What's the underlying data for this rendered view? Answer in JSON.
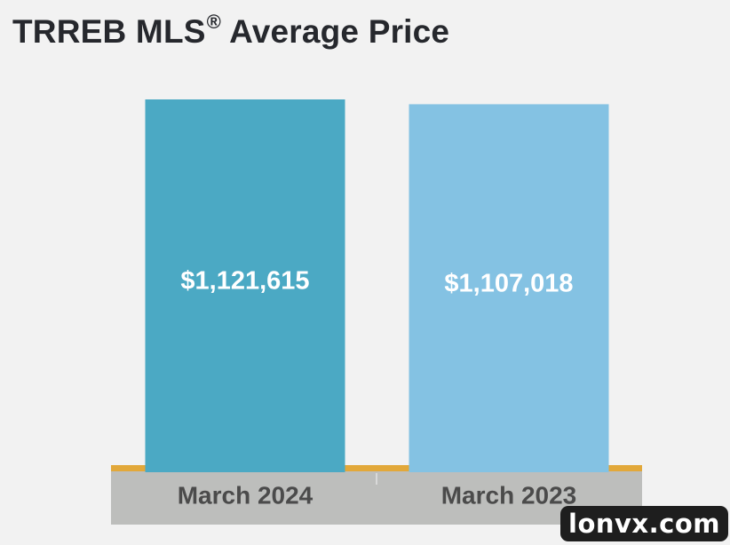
{
  "title": {
    "main": "TRREB MLS",
    "mark": "®",
    "suffix": " Average Price"
  },
  "chart_data": {
    "type": "bar",
    "title": "TRREB MLS® Average Price",
    "categories": [
      "March 2024",
      "March 2023"
    ],
    "values": [
      1121615,
      1107018
    ],
    "data_labels": [
      "$1,121,615",
      "$1,107,018"
    ],
    "colors": [
      "#4ba9c4",
      "#84c2e3"
    ],
    "baseline_color": "#e2a83a",
    "axis_band_color": "#bdbebc",
    "grid": false,
    "legend": "none"
  },
  "watermark": "lonvx.com"
}
